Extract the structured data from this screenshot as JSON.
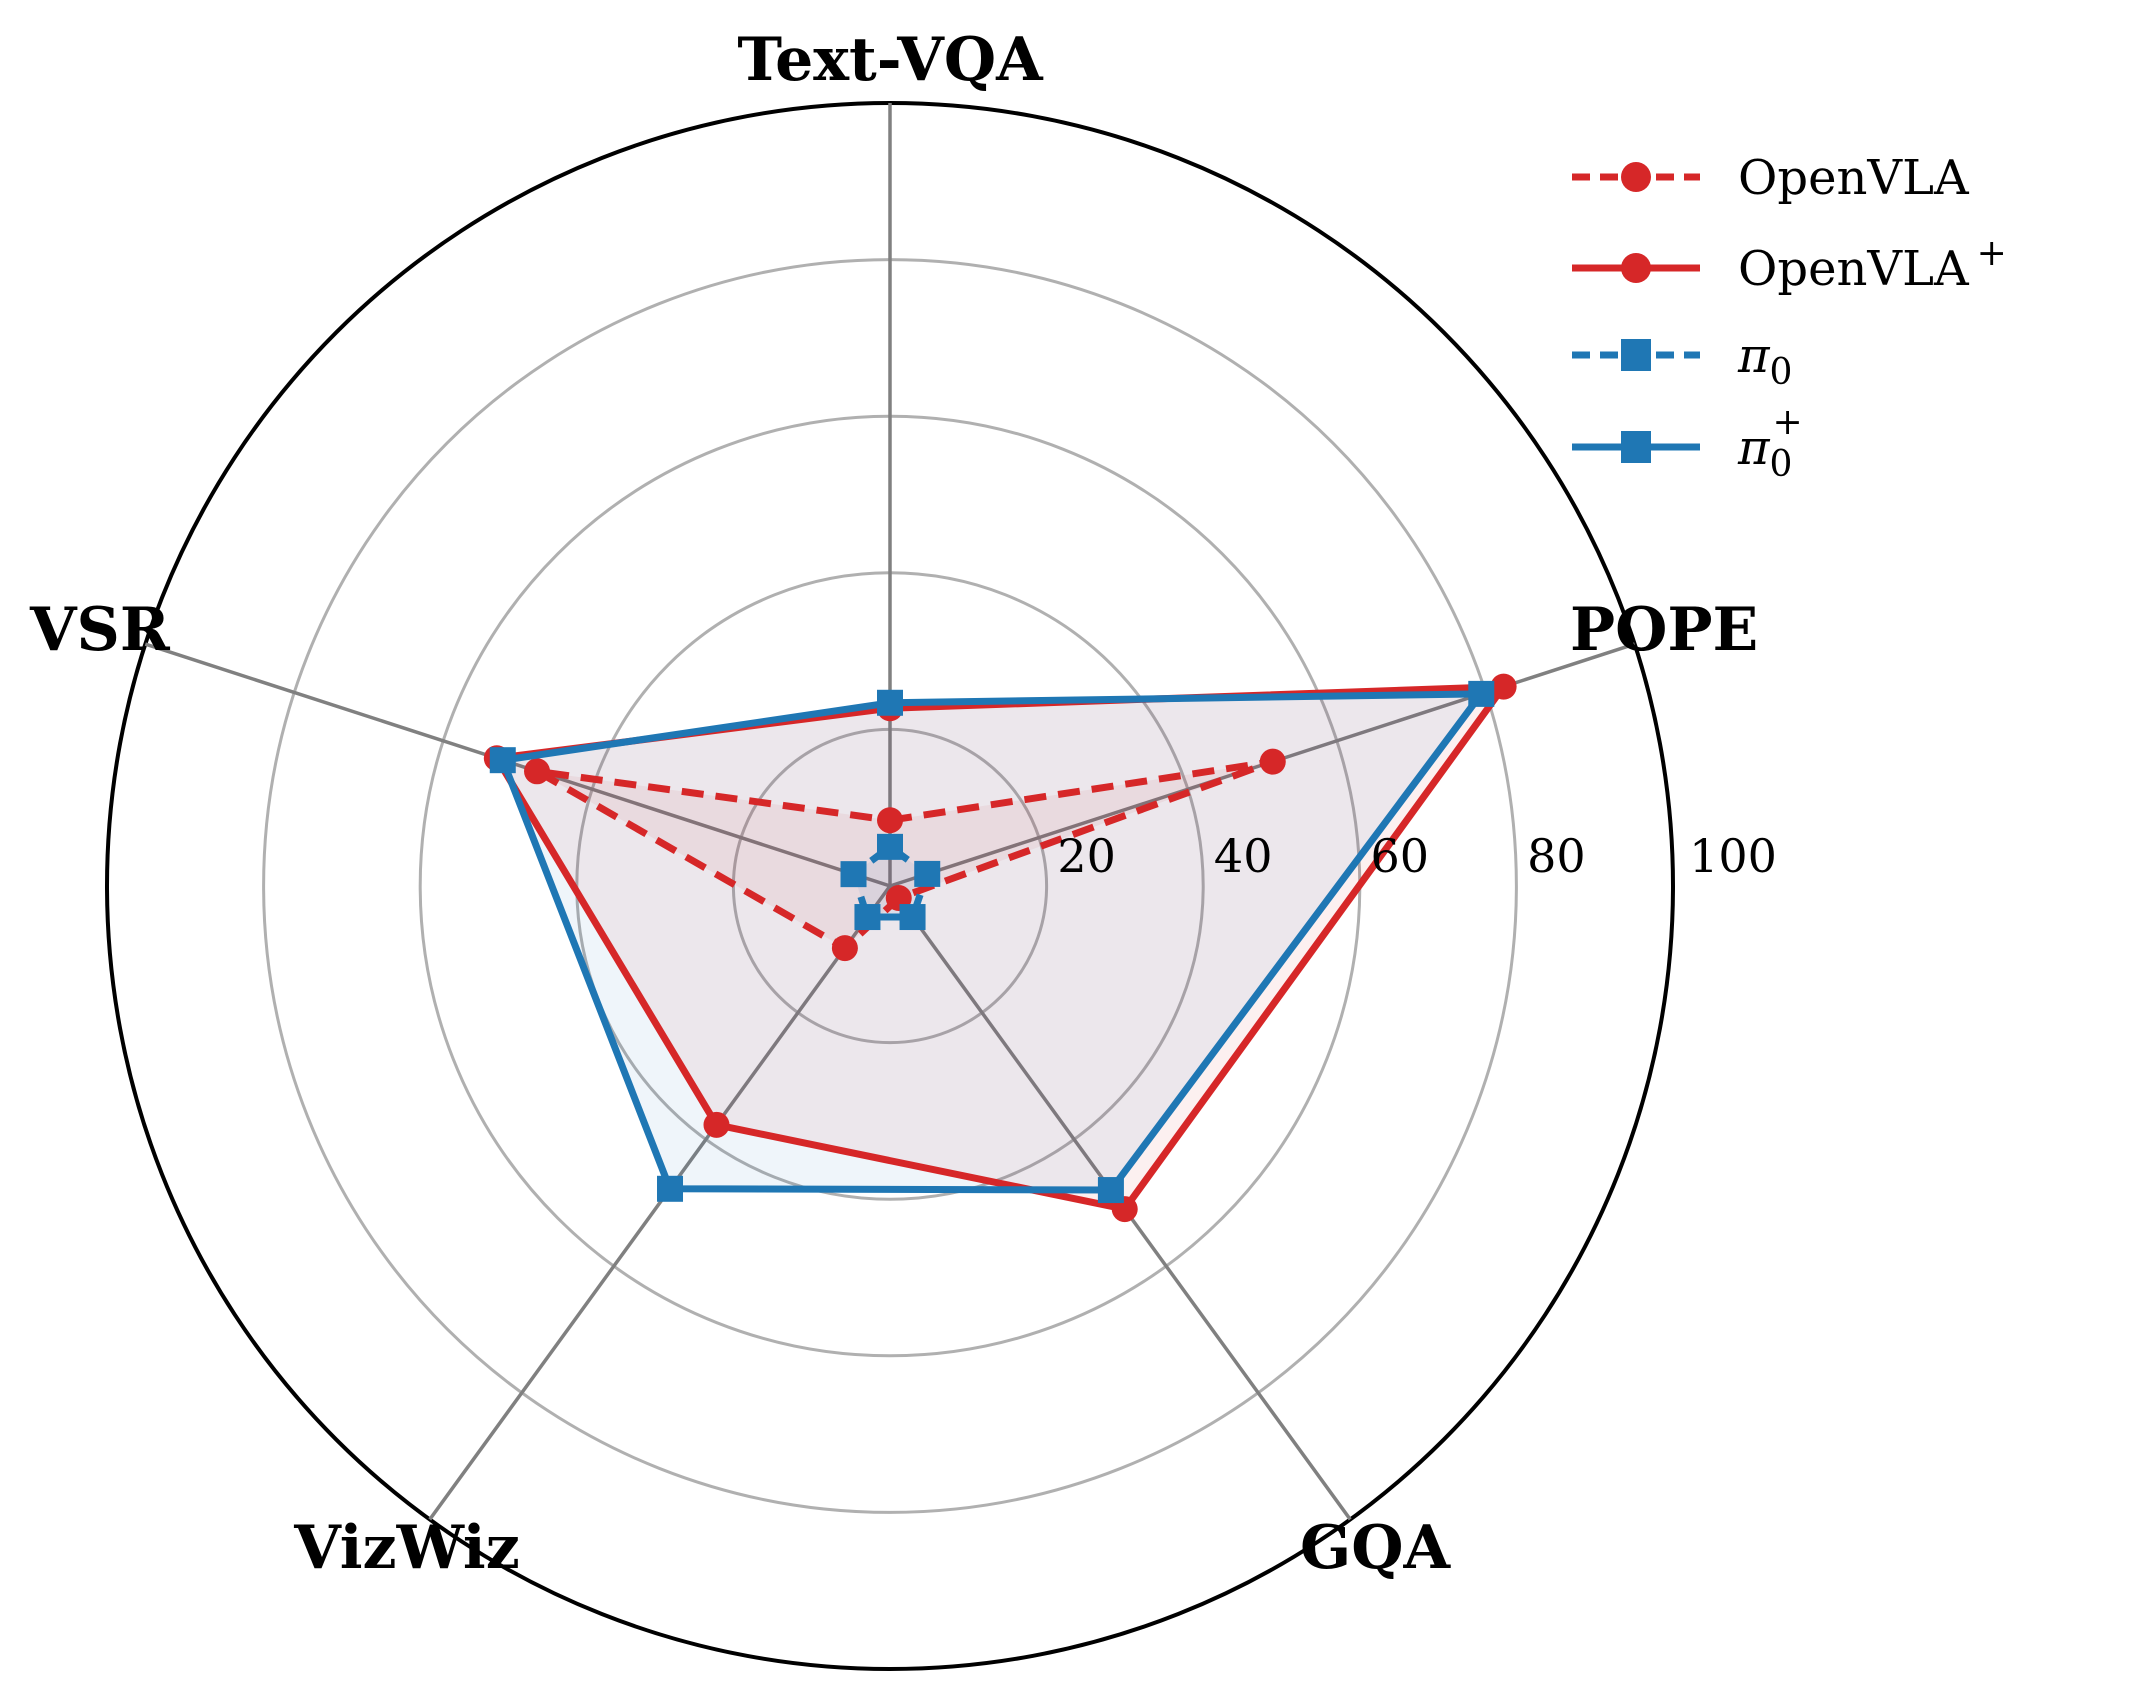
{
  "chart_data": {
    "type": "radar",
    "categories": [
      "Text-VQA",
      "POPE",
      "GQA",
      "VizWiz",
      "VSR"
    ],
    "rlim": [
      0,
      100
    ],
    "rticks": [
      20,
      40,
      60,
      80,
      100
    ],
    "grid": true,
    "legend_position": "top-right",
    "series": [
      {
        "name": "OpenVLA",
        "values": [
          8.4,
          51.4,
          1.9,
          9.8,
          47.4
        ],
        "color": "#d62728",
        "linestyle": "dashed",
        "marker": "circle",
        "fill": true
      },
      {
        "name": "OpenVLA+",
        "values": [
          22.7,
          82.4,
          51.0,
          37.7,
          52.8
        ],
        "color": "#d62728",
        "linestyle": "solid",
        "marker": "circle",
        "fill": true
      },
      {
        "name": "π0",
        "values": [
          5.0,
          5.0,
          4.9,
          4.9,
          4.9
        ],
        "color": "#1f77b4",
        "linestyle": "dashed",
        "marker": "square",
        "fill": true
      },
      {
        "name": "π0+",
        "values": [
          23.4,
          79.4,
          48.0,
          47.8,
          52.0
        ],
        "color": "#1f77b4",
        "linestyle": "solid",
        "marker": "square",
        "fill": true
      }
    ]
  }
}
